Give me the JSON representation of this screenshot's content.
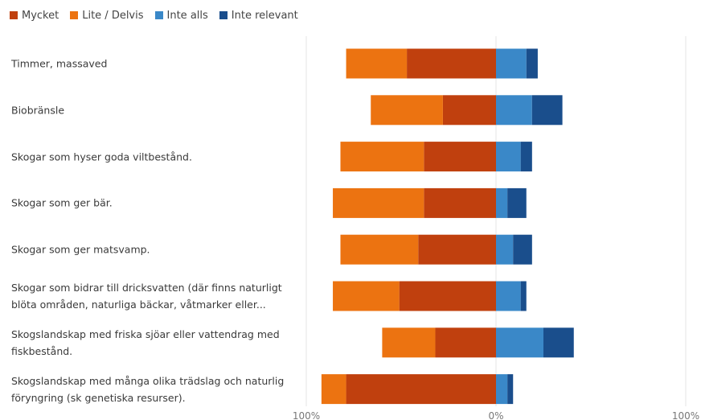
{
  "chart_data": {
    "type": "bar",
    "orientation": "horizontal",
    "stacking": "diverging",
    "categories": [
      "Timmer, massaved",
      "Biobränsle",
      "Skogar som hyser goda viltbestånd.",
      "Skogar som ger bär.",
      "Skogar som ger matsvamp.",
      "Skogar som bidrar till dricksvatten (där finns naturligt\nblöta områden, naturliga bäckar, våtmarker eller...",
      "Skogslandskap med friska sjöar eller vattendrag med\nfiskbestånd.",
      "Skogslandskap med många olika trädslag och naturlig\nföryngring (sk genetiska resurser)."
    ],
    "series": [
      {
        "name": "Mycket",
        "color": "#c0400e",
        "side": "left",
        "values": [
          47,
          28,
          38,
          38,
          41,
          51,
          32,
          79
        ]
      },
      {
        "name": "Lite / Delvis",
        "color": "#ec7311",
        "side": "left",
        "values": [
          32,
          38,
          44,
          48,
          41,
          35,
          28,
          13
        ]
      },
      {
        "name": "Inte alls",
        "color": "#3a88c8",
        "side": "right",
        "values": [
          16,
          19,
          13,
          6,
          9,
          13,
          25,
          6
        ]
      },
      {
        "name": "Inte relevant",
        "color": "#1a4e8c",
        "side": "right",
        "values": [
          6,
          16,
          6,
          10,
          10,
          3,
          16,
          3
        ]
      }
    ],
    "x_ticks": [
      "100%",
      "0%",
      "100%"
    ],
    "xlim": [
      -100,
      100
    ],
    "legend_position": "top-left",
    "grid": false
  }
}
